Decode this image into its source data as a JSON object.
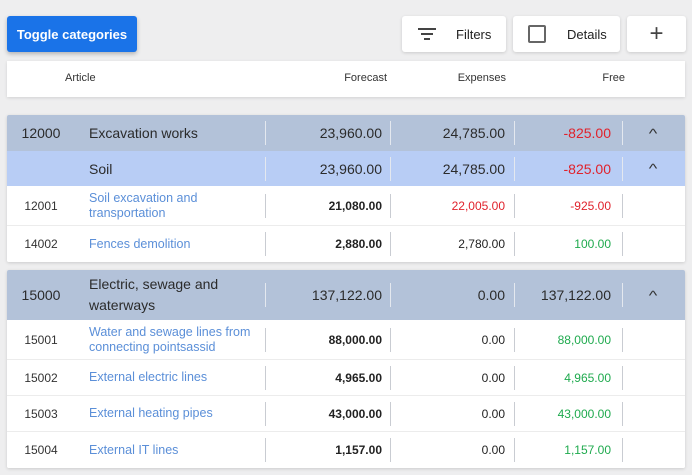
{
  "toolbar": {
    "toggle_label": "Toggle categories",
    "filters_label": "Filters",
    "details_label": "Details",
    "add_label": "+"
  },
  "columns": {
    "article": "Article",
    "forecast": "Forecast",
    "expenses": "Expenses",
    "free": "Free"
  },
  "groups": [
    {
      "code": "12000",
      "name": "Excavation works",
      "forecast": "23,960.00",
      "expenses": "24,785.00",
      "free": "-825.00",
      "sub": {
        "name": "Soil",
        "forecast": "23,960.00",
        "expenses": "24,785.00",
        "free": "-825.00"
      },
      "items": [
        {
          "code": "12001",
          "name": "Soil excavation and transportation",
          "forecast": "21,080.00",
          "expenses": "22,005.00",
          "free": "-925.00"
        },
        {
          "code": "14002",
          "name": "Fences demolition",
          "forecast": "2,880.00",
          "expenses": "2,780.00",
          "free": "100.00"
        }
      ]
    },
    {
      "code": "15000",
      "name": "Electric, sewage and waterways",
      "forecast": "137,122.00",
      "expenses": "0.00",
      "free": "137,122.00",
      "items": [
        {
          "code": "15001",
          "name": "Water and sewage lines from connecting pointsassid",
          "forecast": "88,000.00",
          "expenses": "0.00",
          "free": "88,000.00"
        },
        {
          "code": "15002",
          "name": "External electric lines",
          "forecast": "4,965.00",
          "expenses": "0.00",
          "free": "4,965.00"
        },
        {
          "code": "15003",
          "name": "External heating pipes",
          "forecast": "43,000.00",
          "expenses": "0.00",
          "free": "43,000.00"
        },
        {
          "code": "15004",
          "name": "External IT lines",
          "forecast": "1,157.00",
          "expenses": "0.00",
          "free": "1,157.00"
        }
      ]
    }
  ],
  "colors": {
    "primary": "#1a73e8",
    "negative": "#e0222c",
    "positive": "#1faa4e",
    "link": "#5b8fd8",
    "group_bg": "#b3c2d9",
    "sub_bg": "#b8cdf5"
  },
  "icons": {
    "filter": "filter-lines-icon",
    "checkbox": "checkbox-icon",
    "add": "plus-icon",
    "collapse": "chevron-up-icon"
  }
}
